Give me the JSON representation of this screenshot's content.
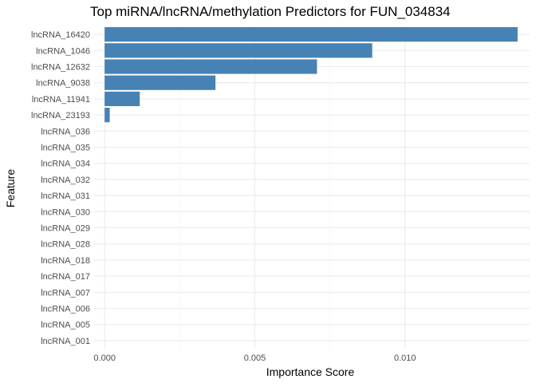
{
  "chart_data": {
    "type": "bar",
    "orientation": "horizontal",
    "title": "Top miRNA/lncRNA/methylation Predictors for FUN_034834",
    "xlabel": "Importance Score",
    "ylabel": "Feature",
    "xlim": [
      -0.00035,
      0.01415
    ],
    "x_ticks": [
      0.0,
      0.005,
      0.01
    ],
    "x_tick_labels": [
      "0.000",
      "0.005",
      "0.010"
    ],
    "grid": true,
    "bar_color": "#4682B4",
    "categories": [
      "lncRNA_16420",
      "lncRNA_1046",
      "lncRNA_12632",
      "lncRNA_9038",
      "lncRNA_11941",
      "lncRNA_23193",
      "lncRNA_036",
      "lncRNA_035",
      "lncRNA_034",
      "lncRNA_032",
      "lncRNA_031",
      "lncRNA_030",
      "lncRNA_029",
      "lncRNA_028",
      "lncRNA_018",
      "lncRNA_017",
      "lncRNA_007",
      "lncRNA_006",
      "lncRNA_005",
      "lncRNA_001"
    ],
    "values": [
      0.01375,
      0.00891,
      0.00707,
      0.00369,
      0.00117,
      0.00017,
      0,
      0,
      0,
      0,
      0,
      0,
      0,
      0,
      0,
      0,
      0,
      0,
      0,
      0
    ]
  }
}
